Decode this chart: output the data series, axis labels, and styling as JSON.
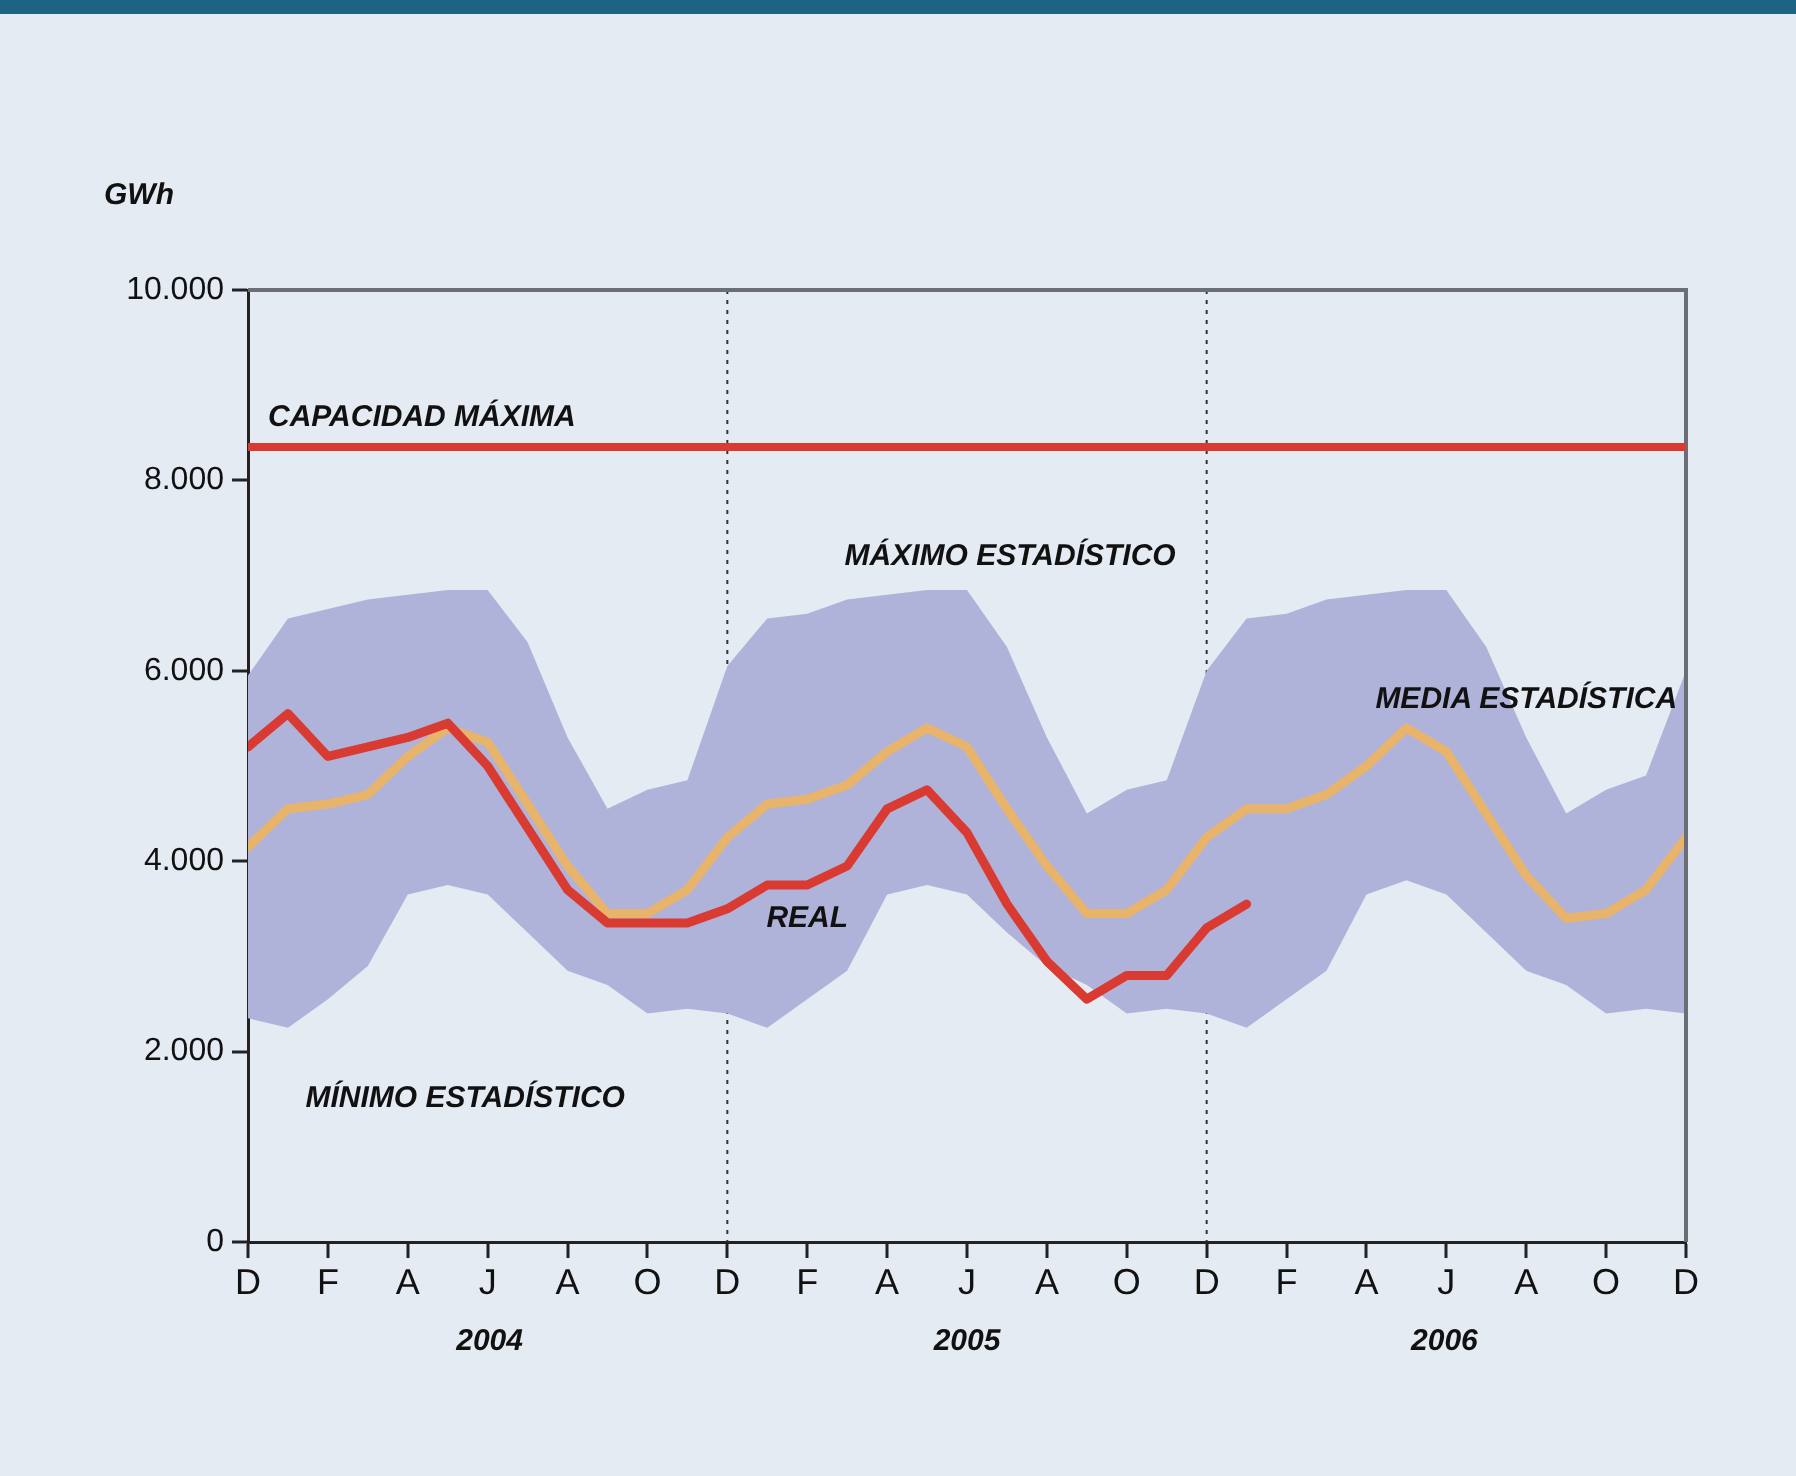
{
  "chart_data": {
    "type": "line",
    "ylabel": "GWh",
    "categories": [
      "D",
      null,
      "F",
      null,
      "A",
      null,
      "J",
      null,
      "A",
      null,
      "O",
      null,
      "D",
      null,
      "F",
      null,
      "A",
      null,
      "J",
      null,
      "A",
      null,
      "O",
      null,
      "D",
      null,
      "F",
      null,
      "A",
      null,
      "J",
      null,
      "A",
      null,
      "O",
      null,
      "D"
    ],
    "ylim": [
      0,
      10000
    ],
    "yticks": [
      {
        "value": 0,
        "label": "0"
      },
      {
        "value": 2000,
        "label": "2.000"
      },
      {
        "value": 4000,
        "label": "4.000"
      },
      {
        "value": 6000,
        "label": "6.000"
      },
      {
        "value": 8000,
        "label": "8.000"
      },
      {
        "value": 10000,
        "label": "10.000"
      }
    ],
    "series": [
      {
        "name": "MEDIA ESTADÍSTICA",
        "color": "#e8b36a",
        "values": [
          4150,
          4550,
          4600,
          4700,
          5100,
          5400,
          5250,
          4600,
          3950,
          3450,
          3450,
          3700,
          4250,
          4600,
          4650,
          4800,
          5150,
          5400,
          5200,
          4550,
          3950,
          3450,
          3450,
          3700,
          4250,
          4550,
          4550,
          4700,
          5000,
          5400,
          5150,
          4500,
          3850,
          3400,
          3450,
          3700,
          4250
        ],
        "upper": [
          5950,
          6550,
          6650,
          6750,
          6800,
          6850,
          6850,
          6300,
          5300,
          4550,
          4750,
          4850,
          6050,
          6550,
          6600,
          6750,
          6800,
          6850,
          6850,
          6250,
          5300,
          4500,
          4750,
          4850,
          6000,
          6550,
          6600,
          6750,
          6800,
          6850,
          6850,
          6250,
          5300,
          4500,
          4750,
          4900,
          6000
        ],
        "lower": [
          2350,
          2250,
          2550,
          2900,
          3650,
          3750,
          3650,
          3250,
          2850,
          2700,
          2400,
          2450,
          2400,
          2250,
          2550,
          2850,
          3650,
          3750,
          3650,
          3250,
          2900,
          2700,
          2400,
          2450,
          2400,
          2250,
          2550,
          2850,
          3650,
          3800,
          3650,
          3250,
          2850,
          2700,
          2400,
          2450,
          2400
        ]
      },
      {
        "name": "REAL",
        "color": "#d93a32",
        "values": [
          5200,
          5550,
          5100,
          5200,
          5300,
          5450,
          5000,
          4350,
          3700,
          3350,
          3350,
          3350,
          3500,
          3750,
          3750,
          3950,
          4550,
          4750,
          4300,
          3550,
          2950,
          2550,
          2800,
          2800,
          3300,
          3550,
          null,
          null,
          null,
          null,
          null,
          null,
          null,
          null,
          null,
          null,
          null
        ]
      }
    ],
    "ref_lines": [
      {
        "axis": "y",
        "value": 8350,
        "label": "CAPACIDAD MÁXIMA",
        "color": "#d93a32",
        "line_style": "solid"
      }
    ],
    "annotations": [
      "MÁXIMO ESTADÍSTICO",
      "MÍNIMO ESTADÍSTICO",
      "2004",
      "2005",
      "2006"
    ],
    "legend": false,
    "marker": "none",
    "line_style": "solid"
  }
}
